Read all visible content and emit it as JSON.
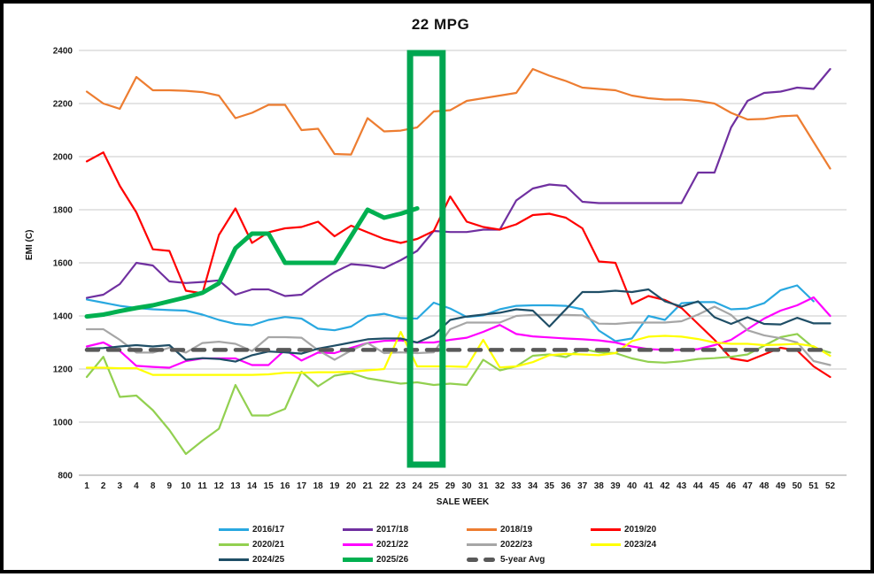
{
  "title": "22 MPG",
  "chart_data": {
    "type": "line",
    "title": "22 MPG",
    "xlabel": "SALE WEEK",
    "ylabel": "EMI (C)",
    "ylim": [
      800,
      2400
    ],
    "y_ticks": [
      800,
      1000,
      1200,
      1400,
      1600,
      1800,
      2000,
      2200,
      2400
    ],
    "grid": true,
    "legend_position": "bottom",
    "categories": [
      "1",
      "2",
      "3",
      "4",
      "8",
      "9",
      "10",
      "11",
      "12",
      "13",
      "14",
      "15",
      "16",
      "17",
      "18",
      "19",
      "20",
      "21",
      "22",
      "23",
      "24",
      "25",
      "29",
      "30",
      "31",
      "32",
      "33",
      "34",
      "35",
      "36",
      "37",
      "38",
      "39",
      "40",
      "41",
      "42",
      "43",
      "44",
      "45",
      "46",
      "47",
      "48",
      "49",
      "50",
      "51",
      "52"
    ],
    "highlight_box": {
      "from_label": "24",
      "to_label": "25",
      "color": "#00A651"
    },
    "series": [
      {
        "name": "2016/17",
        "color": "#29A8E0",
        "width": 2.2,
        "values": [
          1462,
          1450,
          1438,
          1430,
          1425,
          1422,
          1420,
          1405,
          1385,
          1370,
          1365,
          1385,
          1396,
          1390,
          1352,
          1346,
          1360,
          1400,
          1408,
          1392,
          1390,
          1450,
          1428,
          1396,
          1402,
          1425,
          1438,
          1440,
          1440,
          1438,
          1425,
          1345,
          1305,
          1315,
          1400,
          1385,
          1448,
          1452,
          1452,
          1425,
          1428,
          1448,
          1497,
          1515,
          1455,
          null
        ]
      },
      {
        "name": "2017/18",
        "color": "#7030A0",
        "width": 2.2,
        "values": [
          1468,
          1480,
          1520,
          1600,
          1590,
          1530,
          1524,
          1528,
          1534,
          1480,
          1500,
          1500,
          1475,
          1480,
          1525,
          1565,
          1595,
          1590,
          1580,
          1610,
          1645,
          1720,
          1716,
          1716,
          1725,
          1725,
          1835,
          1880,
          1895,
          1890,
          1830,
          1825,
          1825,
          1825,
          1825,
          1825,
          1825,
          1940,
          1940,
          2110,
          2210,
          2240,
          2245,
          2260,
          2255,
          2330
        ]
      },
      {
        "name": "2018/19",
        "color": "#ED7D31",
        "width": 2.2,
        "values": [
          2245,
          2200,
          2180,
          2300,
          2250,
          2250,
          2248,
          2243,
          2230,
          2145,
          2165,
          2195,
          2195,
          2100,
          2105,
          2010,
          2008,
          2145,
          2095,
          2098,
          2110,
          2170,
          2175,
          2210,
          2220,
          2230,
          2240,
          2330,
          2305,
          2285,
          2260,
          2255,
          2250,
          2230,
          2220,
          2215,
          2215,
          2210,
          2200,
          2165,
          2140,
          2142,
          2152,
          2155,
          2055,
          1955
        ]
      },
      {
        "name": "2019/20",
        "color": "#FF0000",
        "width": 2.2,
        "values": [
          1982,
          2016,
          1890,
          1790,
          1651,
          1645,
          1495,
          1485,
          1705,
          1805,
          1675,
          1715,
          1730,
          1735,
          1755,
          1700,
          1740,
          1715,
          1690,
          1675,
          1690,
          1720,
          1850,
          1755,
          1735,
          1725,
          1745,
          1780,
          1785,
          1770,
          1730,
          1605,
          1600,
          1445,
          1475,
          1460,
          1430,
          1370,
          1310,
          1240,
          1230,
          1255,
          1280,
          1270,
          1210,
          1170
        ]
      },
      {
        "name": "2020/21",
        "color": "#92D050",
        "width": 2.2,
        "values": [
          1170,
          1246,
          1095,
          1100,
          1045,
          970,
          880,
          930,
          975,
          1140,
          1025,
          1025,
          1050,
          1190,
          1135,
          1175,
          1185,
          1165,
          1155,
          1145,
          1150,
          1140,
          1145,
          1140,
          1235,
          1195,
          1210,
          1250,
          1255,
          1245,
          1275,
          1263,
          1260,
          1240,
          1227,
          1224,
          1229,
          1238,
          1241,
          1246,
          1255,
          1288,
          1320,
          1332,
          1280,
          1262
        ]
      },
      {
        "name": "2021/22",
        "color": "#FF00FF",
        "width": 2.2,
        "values": [
          1285,
          1300,
          1268,
          1212,
          1208,
          1205,
          1230,
          1240,
          1240,
          1240,
          1215,
          1215,
          1272,
          1232,
          1262,
          1260,
          1280,
          1298,
          1306,
          1308,
          1300,
          1300,
          1310,
          1318,
          1340,
          1366,
          1332,
          1323,
          1319,
          1315,
          1312,
          1308,
          1300,
          1285,
          1275,
          1272,
          1272,
          1275,
          1290,
          1310,
          1350,
          1390,
          1420,
          1440,
          1470,
          1400
        ]
      },
      {
        "name": "2022/23",
        "color": "#A6A6A6",
        "width": 2.2,
        "values": [
          1350,
          1350,
          1310,
          1262,
          1262,
          1280,
          1262,
          1298,
          1303,
          1295,
          1268,
          1320,
          1320,
          1318,
          1271,
          1235,
          1270,
          1298,
          1260,
          1263,
          1260,
          1263,
          1350,
          1375,
          1375,
          1375,
          1400,
          1404,
          1404,
          1404,
          1402,
          1371,
          1370,
          1375,
          1375,
          1375,
          1380,
          1405,
          1435,
          1404,
          1346,
          1327,
          1316,
          1300,
          1230,
          1215
        ]
      },
      {
        "name": "2023/24",
        "color": "#FFFF00",
        "width": 2.2,
        "values": [
          1205,
          1205,
          1203,
          1203,
          1178,
          1178,
          1178,
          1178,
          1178,
          1178,
          1178,
          1180,
          1186,
          1186,
          1188,
          1188,
          1190,
          1195,
          1200,
          1340,
          1210,
          1210,
          1210,
          1208,
          1310,
          1206,
          1210,
          1226,
          1252,
          1257,
          1255,
          1252,
          1260,
          1305,
          1322,
          1325,
          1322,
          1313,
          1300,
          1295,
          1295,
          1290,
          1292,
          1295,
          1286,
          1250
        ]
      },
      {
        "name": "2024/25",
        "color": "#1F4E66",
        "width": 2.2,
        "values": [
          1277,
          1279,
          1285,
          1290,
          1285,
          1290,
          1235,
          1241,
          1238,
          1228,
          1252,
          1266,
          1263,
          1258,
          1277,
          1288,
          1300,
          1312,
          1315,
          1315,
          1300,
          1327,
          1385,
          1398,
          1405,
          1412,
          1425,
          1420,
          1360,
          1425,
          1490,
          1490,
          1495,
          1490,
          1500,
          1455,
          1435,
          1455,
          1395,
          1370,
          1395,
          1370,
          1368,
          1393,
          1372,
          1372
        ]
      },
      {
        "name": "2025/26",
        "color": "#00B050",
        "width": 5,
        "values": [
          1398,
          1405,
          1418,
          1430,
          1440,
          1455,
          1470,
          1487,
          1523,
          1655,
          1710,
          1710,
          1600,
          1600,
          1600,
          1600,
          1700,
          1800,
          1770,
          1785,
          1805,
          null,
          null,
          null,
          null,
          null,
          null,
          null,
          null,
          null,
          null,
          null,
          null,
          null,
          null,
          null,
          null,
          null,
          null,
          null,
          null,
          null,
          null,
          null,
          null,
          null
        ]
      },
      {
        "name": "5-year Avg",
        "color": "#595959",
        "width": 4.5,
        "dash": "13 11",
        "values": [
          1272,
          1272,
          1272,
          1272,
          1272,
          1272,
          1272,
          1272,
          1272,
          1272,
          1272,
          1272,
          1272,
          1272,
          1272,
          1272,
          1272,
          1272,
          1272,
          1272,
          1272,
          1272,
          1272,
          1272,
          1272,
          1272,
          1272,
          1272,
          1272,
          1272,
          1272,
          1272,
          1272,
          1272,
          1272,
          1272,
          1272,
          1272,
          1272,
          1272,
          1272,
          1272,
          1272,
          1272,
          1272,
          1272
        ]
      }
    ]
  }
}
